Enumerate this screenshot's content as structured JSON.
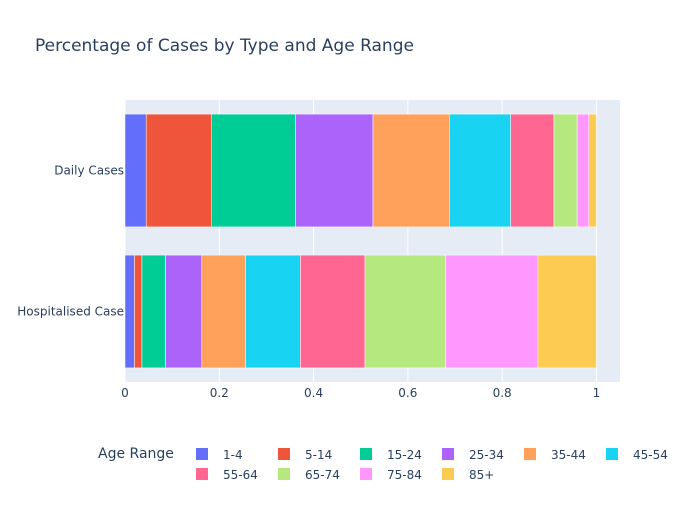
{
  "chart_data": {
    "type": "bar",
    "orientation": "horizontal",
    "stacked": true,
    "title": "Percentage of Cases by Type and Age Range",
    "xlabel": "",
    "ylabel": "",
    "xlim": [
      0,
      1.05
    ],
    "xticks": [
      "0",
      "0.2",
      "0.4",
      "0.6",
      "0.8",
      "1"
    ],
    "categories": [
      "Daily Cases",
      "Hospitalised Case"
    ],
    "category_labels": [
      "Daily Cases",
      "Hospitalised Case"
    ],
    "legend_title": "Age Range",
    "legend_position": "bottom",
    "grid": true,
    "plot_background": "#e5ecf6",
    "series": [
      {
        "name": "1-4",
        "color": "#636efa",
        "values": [
          0.045,
          0.02
        ]
      },
      {
        "name": "5-14",
        "color": "#ef553b",
        "values": [
          0.139,
          0.016
        ]
      },
      {
        "name": "15-24",
        "color": "#00cc96",
        "values": [
          0.178,
          0.05
        ]
      },
      {
        "name": "25-34",
        "color": "#ab63fa",
        "values": [
          0.164,
          0.077
        ]
      },
      {
        "name": "35-44",
        "color": "#ffa15a",
        "values": [
          0.162,
          0.093
        ]
      },
      {
        "name": "45-54",
        "color": "#19d3f3",
        "values": [
          0.13,
          0.116
        ]
      },
      {
        "name": "55-64",
        "color": "#ff6692",
        "values": [
          0.092,
          0.137
        ]
      },
      {
        "name": "65-74",
        "color": "#b6e880",
        "values": [
          0.049,
          0.171
        ]
      },
      {
        "name": "75-84",
        "color": "#ff97ff",
        "values": [
          0.025,
          0.196
        ]
      },
      {
        "name": "85+",
        "color": "#fecb52",
        "values": [
          0.016,
          0.124
        ]
      }
    ]
  }
}
